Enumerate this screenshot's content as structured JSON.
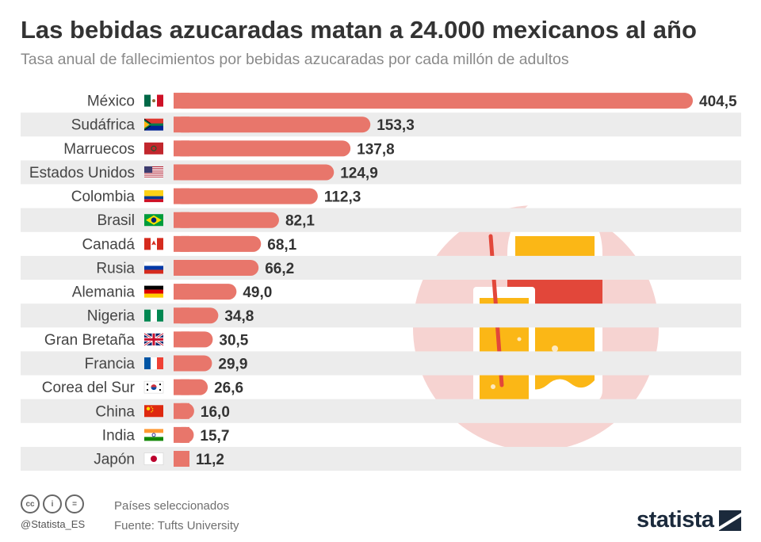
{
  "header": {
    "title": "Las bebidas azucaradas matan a 24.000 mexicanos al año",
    "subtitle": "Tasa anual de fallecimientos por bebidas azucaradas por cada millón de adultos"
  },
  "colors": {
    "bar": "#e8766b",
    "stripe": "#ececec",
    "label": "#444444",
    "value": "#333333",
    "circle": "#f6d3d1",
    "juice": "#fbb716",
    "red_accent": "#e2473a"
  },
  "chart_data": {
    "type": "bar",
    "orientation": "horizontal",
    "categories": [
      "México",
      "Sudáfrica",
      "Marruecos",
      "Estados Unidos",
      "Colombia",
      "Brasil",
      "Canadá",
      "Rusia",
      "Alemania",
      "Nigeria",
      "Gran Bretaña",
      "Francia",
      "Corea del Sur",
      "China",
      "India",
      "Japón"
    ],
    "values": [
      404.5,
      153.3,
      137.8,
      124.9,
      112.3,
      82.1,
      68.1,
      66.2,
      49.0,
      34.8,
      30.5,
      29.9,
      26.6,
      16.0,
      15.7,
      11.2
    ],
    "value_labels": [
      "404,5",
      "153,3",
      "137,8",
      "124,9",
      "112,3",
      "82,1",
      "68,1",
      "66,2",
      "49,0",
      "34,8",
      "30,5",
      "29,9",
      "26,6",
      "16,0",
      "15,7",
      "11,2"
    ],
    "flags": [
      "mexico-flag-icon",
      "south-africa-flag-icon",
      "morocco-flag-icon",
      "usa-flag-icon",
      "colombia-flag-icon",
      "brazil-flag-icon",
      "canada-flag-icon",
      "russia-flag-icon",
      "germany-flag-icon",
      "nigeria-flag-icon",
      "uk-flag-icon",
      "france-flag-icon",
      "south-korea-flag-icon",
      "china-flag-icon",
      "india-flag-icon",
      "japan-flag-icon"
    ],
    "xlim": [
      0,
      404.5
    ],
    "grid": false
  },
  "footer": {
    "handle": "@Statista_ES",
    "note": "Países seleccionados",
    "source": "Fuente: Tufts University",
    "brand": "statista"
  }
}
